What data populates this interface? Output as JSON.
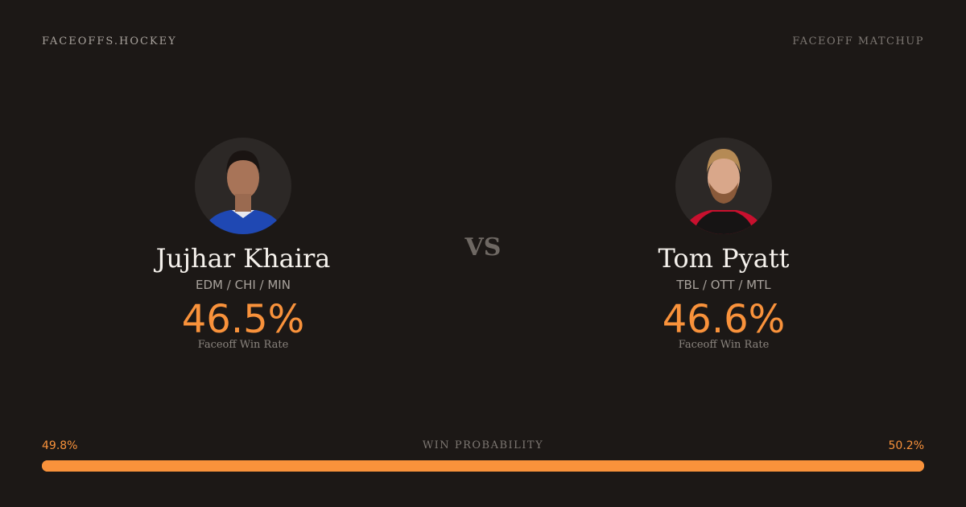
{
  "header": {
    "brand": "FACEOFFS.HOCKEY",
    "tag": "FACEOFF MATCHUP"
  },
  "players": [
    {
      "name": "Jujhar Khaira",
      "teams": "EDM / CHI / MIN",
      "win_rate": "46.5%",
      "win_rate_label": "Faceoff Win Rate",
      "jersey_color": "#1f48b3"
    },
    {
      "name": "Tom Pyatt",
      "teams": "TBL / OTT / MTL",
      "win_rate": "46.6%",
      "win_rate_label": "Faceoff Win Rate",
      "jersey_color": "#c8102e"
    }
  ],
  "vs": "VS",
  "win_probability": {
    "label": "WIN PROBABILITY",
    "left": "49.8%",
    "right": "50.2%",
    "left_value": 49.8,
    "right_value": 50.2,
    "color": "#f9923b"
  }
}
